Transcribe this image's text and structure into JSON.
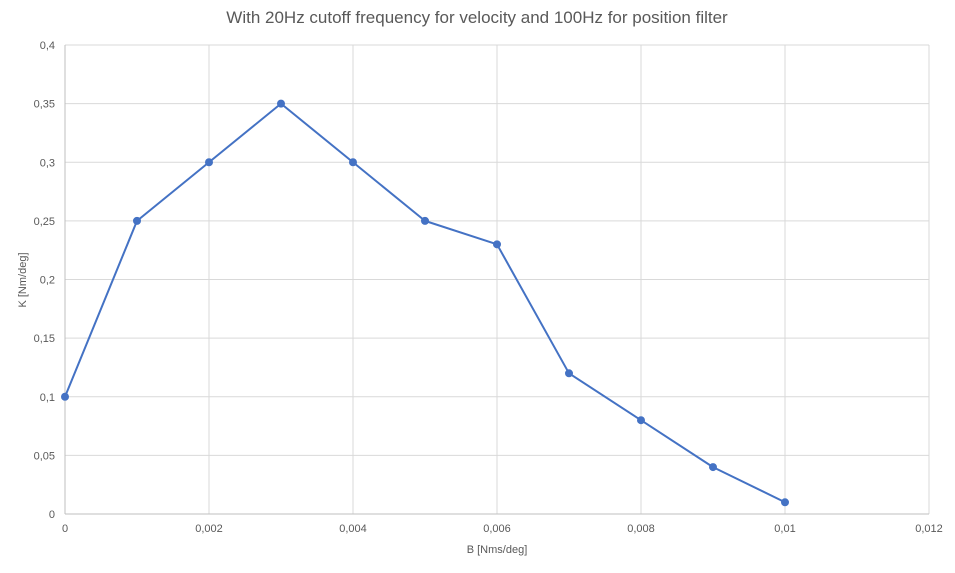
{
  "chart_data": {
    "type": "line",
    "title": "With 20Hz cutoff frequency for velocity and 100Hz for position filter",
    "xlabel": "B [Nms/deg]",
    "ylabel": "K [Nm/deg]",
    "xlim": [
      0,
      0.012
    ],
    "ylim": [
      0,
      0.4
    ],
    "x_ticks": [
      "0",
      "0,002",
      "0,004",
      "0,006",
      "0,008",
      "0,01",
      "0,012"
    ],
    "y_ticks": [
      "0",
      "0,05",
      "0,1",
      "0,15",
      "0,2",
      "0,25",
      "0,3",
      "0,35",
      "0,4"
    ],
    "grid": true,
    "legend": "none",
    "series": [
      {
        "color": "#4472c4",
        "x": [
          0,
          0.001,
          0.002,
          0.003,
          0.004,
          0.005,
          0.006,
          0.007,
          0.008,
          0.009,
          0.01
        ],
        "y": [
          0.1,
          0.25,
          0.3,
          0.35,
          0.3,
          0.25,
          0.23,
          0.12,
          0.08,
          0.04,
          0.01
        ]
      }
    ]
  }
}
